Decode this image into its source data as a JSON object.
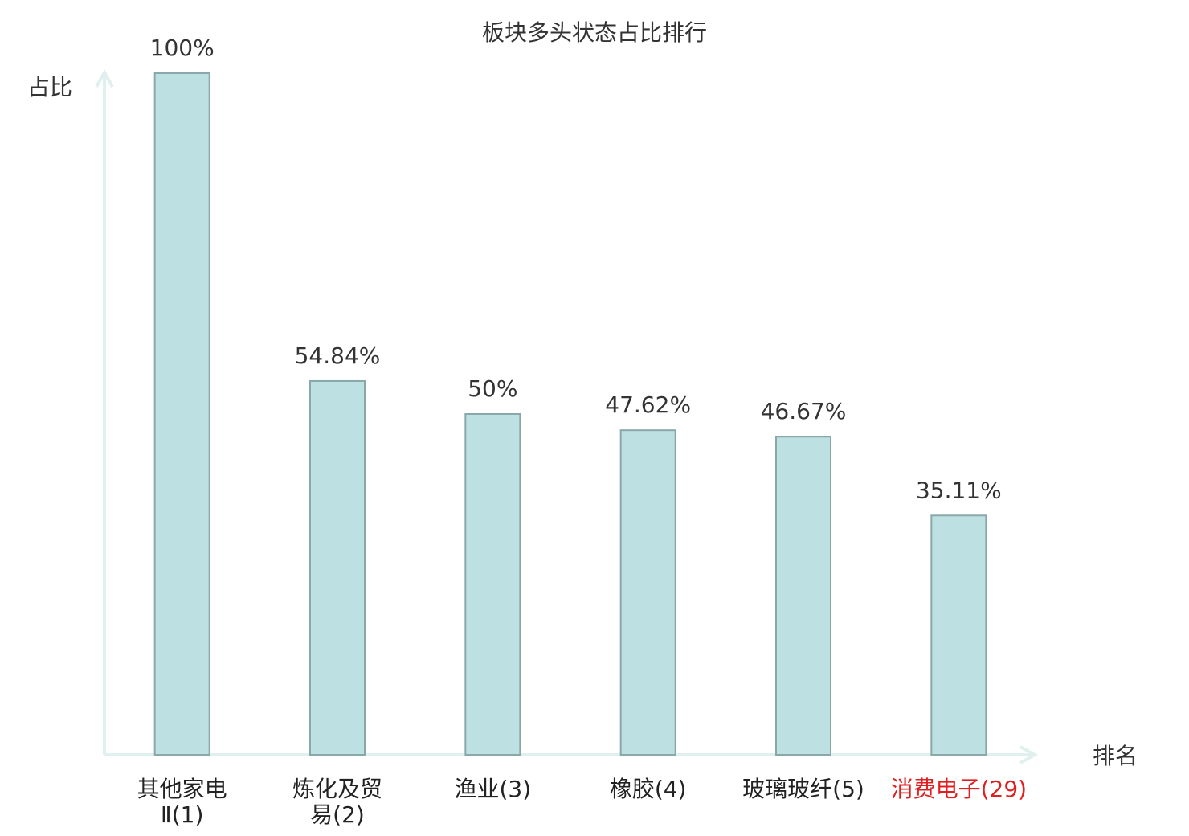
{
  "chart_data": {
    "type": "bar",
    "title": "板块多头状态占比排行",
    "y_label": "占比",
    "x_label": "排名",
    "categories": [
      "其他家电\nⅡ(1)",
      "炼化及贸\n易(2)",
      "渔业(3)",
      "橡胶(4)",
      "玻璃玻纤(5)",
      "消费电子(29)"
    ],
    "category_colors": [
      "#222222",
      "#222222",
      "#222222",
      "#222222",
      "#222222",
      "#e02020"
    ],
    "values": [
      100,
      54.84,
      50,
      47.62,
      46.67,
      35.11
    ],
    "value_labels": [
      "100%",
      "54.84%",
      "50%",
      "47.62%",
      "46.67%",
      "35.11%"
    ],
    "color": "#bde0e2",
    "ylim": [
      0,
      100
    ]
  }
}
